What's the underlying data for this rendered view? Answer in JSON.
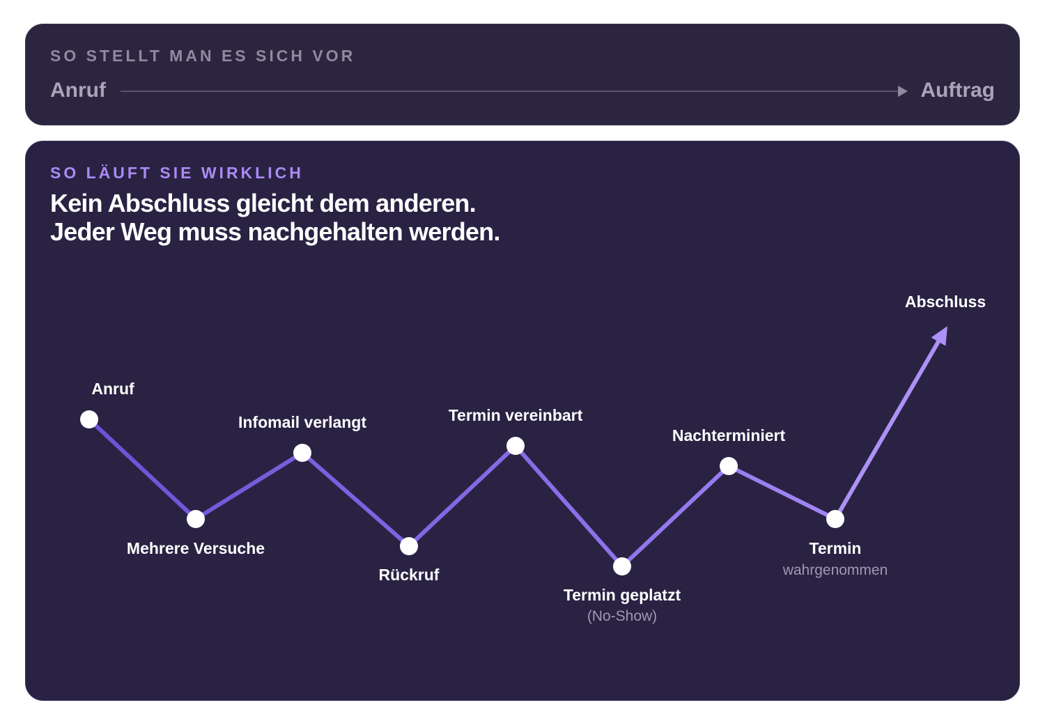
{
  "expectation": {
    "eyebrow": "SO STELLT MAN ES SICH VOR",
    "from": "Anruf",
    "to": "Auftrag"
  },
  "reality": {
    "eyebrow": "SO LÄUFT SIE WIRKLICH",
    "headline_line1": "Kein Abschluss gleicht dem anderen.",
    "headline_line2": "Jeder Weg muss nachgehalten werden."
  },
  "journey": {
    "steps": [
      {
        "label": "Anruf",
        "sublabel": ""
      },
      {
        "label": "Mehrere Versuche",
        "sublabel": ""
      },
      {
        "label": "Infomail verlangt",
        "sublabel": ""
      },
      {
        "label": "Rückruf",
        "sublabel": ""
      },
      {
        "label": "Termin vereinbart",
        "sublabel": ""
      },
      {
        "label": "Termin geplatzt",
        "sublabel": "(No-Show)"
      },
      {
        "label": "Nachterminiert",
        "sublabel": ""
      },
      {
        "label": "Termin",
        "sublabel": "wahrgenommen"
      }
    ],
    "end_label": "Abschluss"
  },
  "colors": {
    "card_background": "#2b2540",
    "main_background": "#2a2243",
    "accent": "#a98cf4",
    "line_start": "#6b52d6",
    "line_end": "#ad91f6",
    "muted_text": "#9f98b3"
  }
}
